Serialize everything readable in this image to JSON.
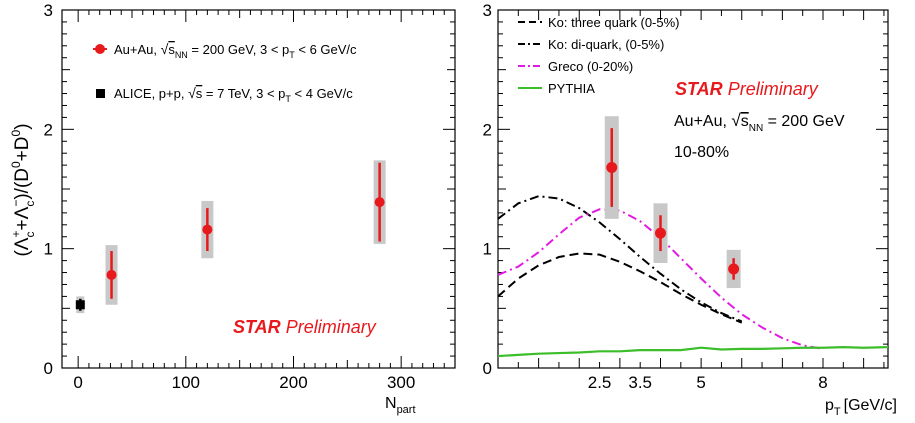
{
  "chart_data": [
    {
      "type": "scatter",
      "title": "",
      "xlabel": "N",
      "xlabel_sub": "part",
      "ylabel": "(Λc⁺+Λ̄c⁻)/(D⁰+D̄⁰)",
      "xlim": [
        -15,
        350
      ],
      "ylim": [
        0,
        3
      ],
      "xticks": [
        "0",
        "100",
        "200",
        "300"
      ],
      "yticks": [
        "0",
        "1",
        "2",
        "3"
      ],
      "legend_position": "top-left",
      "series": [
        {
          "name": "Au+Au, √sNN = 200 GeV, 3 < pT < 6 GeV/c",
          "color": "#e8191c",
          "marker": "circle",
          "points": [
            {
              "x": 31,
              "y": 0.78,
              "stat": 0.2,
              "syst": 0.25
            },
            {
              "x": 120,
              "y": 1.16,
              "stat": 0.18,
              "syst": 0.24
            },
            {
              "x": 280,
              "y": 1.39,
              "stat": 0.33,
              "syst": 0.35
            }
          ]
        },
        {
          "name": "ALICE, p+p, √s = 7 TeV, 3 < pT < 4 GeV/c",
          "color": "#000000",
          "marker": "square",
          "points": [
            {
              "x": 2,
              "y": 0.53,
              "stat": 0.05,
              "syst": 0.07
            }
          ]
        }
      ],
      "annotation": {
        "bold": "STAR",
        "italic": "Preliminary"
      }
    },
    {
      "type": "line",
      "title": "",
      "xlabel": "p",
      "xlabel_sub": "T",
      "xlabel_unit": "[GeV/c]",
      "xlim": [
        0,
        9.6
      ],
      "ylim": [
        0,
        3
      ],
      "xticks": [
        "2.5",
        "3.5",
        "5",
        "8"
      ],
      "yticks": [
        "0",
        "1",
        "2",
        "3"
      ],
      "legend_position": "top-left",
      "series": [
        {
          "name": "Ko: three quark (0-5%)",
          "color": "#000000",
          "style": "dashed",
          "x": [
            0,
            0.5,
            1,
            1.5,
            2,
            2.5,
            3,
            3.5,
            4,
            4.5,
            5,
            5.5,
            6
          ],
          "y": [
            0.6,
            0.75,
            0.86,
            0.93,
            0.96,
            0.95,
            0.89,
            0.81,
            0.72,
            0.62,
            0.53,
            0.45,
            0.38
          ]
        },
        {
          "name": "Ko: di-quark, (0-5%)",
          "color": "#000000",
          "style": "dashdot",
          "x": [
            0,
            0.5,
            1,
            1.5,
            2,
            2.5,
            3,
            3.5,
            4,
            4.5,
            5,
            5.5,
            6
          ],
          "y": [
            1.25,
            1.38,
            1.44,
            1.42,
            1.34,
            1.22,
            1.08,
            0.93,
            0.79,
            0.66,
            0.55,
            0.46,
            0.39
          ]
        },
        {
          "name": "Greco (0-20%)",
          "color": "#e21be2",
          "style": "dashdot",
          "x": [
            0,
            0.5,
            1,
            1.5,
            2,
            2.5,
            3,
            3.5,
            4,
            4.5,
            5,
            5.5,
            6,
            6.5,
            7,
            7.5,
            8
          ],
          "y": [
            0.78,
            0.85,
            0.97,
            1.12,
            1.26,
            1.33,
            1.32,
            1.23,
            1.09,
            0.92,
            0.75,
            0.59,
            0.45,
            0.34,
            0.25,
            0.19,
            0.16
          ]
        },
        {
          "name": "PYTHIA",
          "color": "#3cbd2a",
          "style": "solid",
          "x": [
            0,
            0.5,
            1,
            1.5,
            2,
            2.5,
            3,
            3.5,
            4,
            4.5,
            5,
            5.5,
            6,
            6.5,
            7,
            7.5,
            8,
            8.5,
            9,
            9.6
          ],
          "y": [
            0.1,
            0.11,
            0.12,
            0.125,
            0.13,
            0.14,
            0.14,
            0.15,
            0.15,
            0.15,
            0.17,
            0.155,
            0.16,
            0.16,
            0.165,
            0.17,
            0.17,
            0.175,
            0.17,
            0.175
          ]
        }
      ],
      "points": [
        {
          "x": 2.8,
          "y": 1.68,
          "stat": 0.33,
          "syst": 0.43
        },
        {
          "x": 4.0,
          "y": 1.13,
          "stat": 0.15,
          "syst": 0.25
        },
        {
          "x": 5.8,
          "y": 0.83,
          "stat": 0.09,
          "syst": 0.16
        }
      ],
      "point_color": "#e8191c",
      "annotation": {
        "bold": "STAR",
        "italic": "Preliminary",
        "system": "Au+Au, √sNN = 200 GeV",
        "centrality": "10-80%"
      }
    }
  ],
  "ui": {
    "left_legend_1_text": "Au+Au, ",
    "left_legend_1_sqrt": "s",
    "left_legend_1_sqrt_sub": "NN",
    "left_legend_1_rest": " = 200 GeV, 3 < p",
    "left_legend_1_pt_sub": "T",
    "left_legend_1_end": " < 6 GeV/c",
    "left_legend_2_text": "ALICE, p+p, ",
    "left_legend_2_sqrt": "s",
    "left_legend_2_rest": " = 7 TeV, 3 < p",
    "left_legend_2_pt_sub": "T",
    "left_legend_2_end": " < 4 GeV/c",
    "right_system_prefix": "Au+Au, ",
    "right_system_sqrt": "s",
    "right_system_sub": "NN",
    "right_system_rest": " = 200 GeV",
    "right_centrality": "10-80%"
  }
}
